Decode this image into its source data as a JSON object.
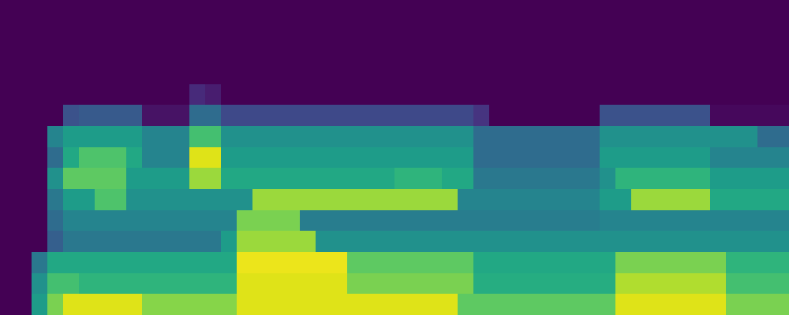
{
  "chart_data": {
    "type": "heatmap",
    "tick_labels": false,
    "zlim": [
      0,
      1
    ],
    "z": [
      [
        0,
        0,
        0,
        0,
        0,
        0,
        0,
        0,
        0,
        0,
        0,
        0,
        0,
        0,
        0,
        0,
        0,
        0,
        0,
        0,
        0,
        0,
        0,
        0,
        0,
        0,
        0,
        0,
        0,
        0,
        0,
        0,
        0,
        0,
        0,
        0,
        0,
        0,
        0,
        0,
        0,
        0,
        0,
        0,
        0,
        0,
        0,
        0,
        0,
        0
      ],
      [
        0,
        0,
        0,
        0,
        0,
        0,
        0,
        0,
        0,
        0,
        0,
        0,
        0,
        0,
        0,
        0,
        0,
        0,
        0,
        0,
        0,
        0,
        0,
        0,
        0,
        0,
        0,
        0,
        0,
        0,
        0,
        0,
        0,
        0,
        0,
        0,
        0,
        0,
        0,
        0,
        0,
        0,
        0,
        0,
        0,
        0,
        0,
        0,
        0,
        0
      ],
      [
        0,
        0,
        0,
        0,
        0,
        0,
        0,
        0,
        0,
        0,
        0,
        0,
        0,
        0,
        0,
        0,
        0,
        0,
        0,
        0,
        0,
        0,
        0,
        0,
        0,
        0,
        0,
        0,
        0,
        0,
        0,
        0,
        0,
        0,
        0,
        0,
        0,
        0,
        0,
        0,
        0,
        0,
        0,
        0,
        0,
        0,
        0,
        0,
        0,
        0
      ],
      [
        0,
        0,
        0,
        0,
        0,
        0,
        0,
        0,
        0,
        0,
        0,
        0,
        0,
        0,
        0,
        0,
        0,
        0,
        0,
        0,
        0,
        0,
        0,
        0,
        0,
        0,
        0,
        0,
        0,
        0,
        0,
        0,
        0,
        0,
        0,
        0,
        0,
        0,
        0,
        0,
        0,
        0,
        0,
        0,
        0,
        0,
        0,
        0,
        0,
        0
      ],
      [
        0,
        0,
        0,
        0,
        0,
        0,
        0,
        0,
        0,
        0,
        0,
        0,
        0.12,
        0.08,
        0,
        0,
        0,
        0,
        0,
        0,
        0,
        0,
        0,
        0,
        0,
        0,
        0,
        0,
        0,
        0,
        0,
        0,
        0,
        0,
        0,
        0,
        0,
        0,
        0,
        0,
        0,
        0,
        0,
        0,
        0,
        0,
        0,
        0,
        0,
        0
      ],
      [
        0,
        0,
        0,
        0,
        0.25,
        0.28,
        0.28,
        0.28,
        0.28,
        0.05,
        0.05,
        0.05,
        0.35,
        0.35,
        0.22,
        0.22,
        0.22,
        0.22,
        0.22,
        0.22,
        0.22,
        0.22,
        0.22,
        0.22,
        0.22,
        0.22,
        0.22,
        0.22,
        0.22,
        0.22,
        0.15,
        0,
        0,
        0,
        0,
        0,
        0,
        0,
        0.25,
        0.25,
        0.25,
        0.25,
        0.25,
        0.25,
        0.25,
        0.02,
        0.02,
        0.02,
        0.02,
        0.02
      ],
      [
        0,
        0,
        0,
        0.45,
        0.55,
        0.55,
        0.55,
        0.55,
        0.55,
        0.45,
        0.45,
        0.45,
        0.7,
        0.7,
        0.5,
        0.5,
        0.5,
        0.5,
        0.5,
        0.5,
        0.5,
        0.5,
        0.5,
        0.5,
        0.5,
        0.5,
        0.5,
        0.5,
        0.5,
        0.5,
        0.35,
        0.35,
        0.35,
        0.35,
        0.35,
        0.35,
        0.35,
        0.35,
        0.5,
        0.5,
        0.5,
        0.5,
        0.5,
        0.5,
        0.5,
        0.5,
        0.5,
        0.5,
        0.35,
        0.35
      ],
      [
        0,
        0,
        0,
        0.35,
        0.6,
        0.72,
        0.72,
        0.72,
        0.6,
        0.45,
        0.45,
        0.45,
        0.95,
        0.95,
        0.55,
        0.55,
        0.55,
        0.55,
        0.55,
        0.55,
        0.55,
        0.55,
        0.55,
        0.55,
        0.55,
        0.55,
        0.55,
        0.55,
        0.55,
        0.55,
        0.35,
        0.35,
        0.35,
        0.35,
        0.35,
        0.35,
        0.35,
        0.35,
        0.55,
        0.55,
        0.55,
        0.55,
        0.55,
        0.55,
        0.55,
        0.45,
        0.45,
        0.45,
        0.45,
        0.45
      ],
      [
        0,
        0,
        0,
        0.5,
        0.75,
        0.75,
        0.75,
        0.75,
        0.55,
        0.55,
        0.55,
        0.55,
        0.85,
        0.85,
        0.6,
        0.6,
        0.6,
        0.6,
        0.6,
        0.6,
        0.6,
        0.6,
        0.6,
        0.6,
        0.6,
        0.65,
        0.65,
        0.65,
        0.6,
        0.6,
        0.4,
        0.4,
        0.4,
        0.4,
        0.4,
        0.4,
        0.4,
        0.4,
        0.5,
        0.65,
        0.65,
        0.65,
        0.65,
        0.65,
        0.65,
        0.55,
        0.55,
        0.55,
        0.55,
        0.55
      ],
      [
        0,
        0,
        0,
        0.4,
        0.55,
        0.55,
        0.72,
        0.72,
        0.5,
        0.5,
        0.5,
        0.5,
        0.5,
        0.5,
        0.5,
        0.5,
        0.85,
        0.85,
        0.85,
        0.85,
        0.85,
        0.85,
        0.85,
        0.85,
        0.85,
        0.85,
        0.85,
        0.85,
        0.85,
        0.45,
        0.45,
        0.45,
        0.45,
        0.45,
        0.45,
        0.45,
        0.45,
        0.45,
        0.55,
        0.55,
        0.85,
        0.85,
        0.85,
        0.85,
        0.85,
        0.6,
        0.6,
        0.6,
        0.6,
        0.6
      ],
      [
        0,
        0,
        0,
        0.35,
        0.45,
        0.45,
        0.45,
        0.45,
        0.45,
        0.45,
        0.45,
        0.45,
        0.45,
        0.45,
        0.45,
        0.8,
        0.8,
        0.8,
        0.8,
        0.42,
        0.42,
        0.42,
        0.42,
        0.42,
        0.42,
        0.42,
        0.42,
        0.42,
        0.42,
        0.42,
        0.42,
        0.42,
        0.42,
        0.42,
        0.42,
        0.42,
        0.42,
        0.42,
        0.45,
        0.45,
        0.45,
        0.45,
        0.45,
        0.45,
        0.45,
        0.45,
        0.45,
        0.45,
        0.45,
        0.45
      ],
      [
        0,
        0,
        0,
        0.3,
        0.4,
        0.4,
        0.4,
        0.4,
        0.4,
        0.4,
        0.4,
        0.4,
        0.4,
        0.4,
        0.55,
        0.85,
        0.85,
        0.85,
        0.85,
        0.85,
        0.5,
        0.5,
        0.5,
        0.5,
        0.5,
        0.5,
        0.5,
        0.5,
        0.5,
        0.5,
        0.5,
        0.5,
        0.5,
        0.5,
        0.5,
        0.5,
        0.5,
        0.5,
        0.5,
        0.5,
        0.5,
        0.5,
        0.5,
        0.5,
        0.5,
        0.5,
        0.5,
        0.5,
        0.5,
        0.5
      ],
      [
        0,
        0,
        0.4,
        0.6,
        0.6,
        0.6,
        0.6,
        0.6,
        0.6,
        0.6,
        0.6,
        0.6,
        0.6,
        0.6,
        0.6,
        0.97,
        0.97,
        0.97,
        0.97,
        0.97,
        0.97,
        0.97,
        0.75,
        0.75,
        0.75,
        0.75,
        0.75,
        0.75,
        0.75,
        0.75,
        0.6,
        0.6,
        0.6,
        0.6,
        0.6,
        0.6,
        0.6,
        0.6,
        0.6,
        0.8,
        0.8,
        0.8,
        0.8,
        0.8,
        0.8,
        0.8,
        0.65,
        0.65,
        0.65,
        0.65
      ],
      [
        0,
        0,
        0.5,
        0.7,
        0.7,
        0.65,
        0.65,
        0.65,
        0.65,
        0.65,
        0.65,
        0.65,
        0.65,
        0.65,
        0.65,
        0.95,
        0.95,
        0.95,
        0.95,
        0.95,
        0.95,
        0.95,
        0.8,
        0.8,
        0.8,
        0.8,
        0.8,
        0.8,
        0.8,
        0.8,
        0.62,
        0.62,
        0.62,
        0.62,
        0.62,
        0.62,
        0.62,
        0.62,
        0.62,
        0.88,
        0.88,
        0.88,
        0.88,
        0.88,
        0.88,
        0.88,
        0.7,
        0.7,
        0.7,
        0.7
      ],
      [
        0,
        0,
        0.55,
        0.8,
        0.95,
        0.95,
        0.95,
        0.95,
        0.95,
        0.82,
        0.82,
        0.82,
        0.82,
        0.82,
        0.82,
        0.95,
        0.95,
        0.95,
        0.95,
        0.95,
        0.95,
        0.95,
        0.95,
        0.95,
        0.95,
        0.95,
        0.95,
        0.95,
        0.95,
        0.75,
        0.75,
        0.75,
        0.75,
        0.75,
        0.75,
        0.75,
        0.75,
        0.75,
        0.75,
        0.95,
        0.95,
        0.95,
        0.95,
        0.95,
        0.95,
        0.95,
        0.8,
        0.8,
        0.8,
        0.8
      ]
    ]
  }
}
